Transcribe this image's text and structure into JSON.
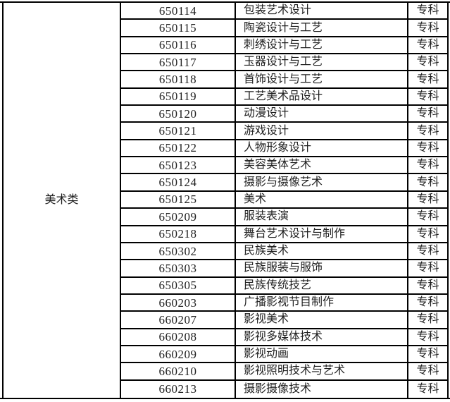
{
  "table": {
    "category": "美术类",
    "rows": [
      {
        "code": "650114",
        "major": "包装艺术设计",
        "level": "专科"
      },
      {
        "code": "650115",
        "major": "陶瓷设计与工艺",
        "level": "专科"
      },
      {
        "code": "650116",
        "major": "刺绣设计与工艺",
        "level": "专科"
      },
      {
        "code": "650117",
        "major": "玉器设计与工艺",
        "level": "专科"
      },
      {
        "code": "650118",
        "major": "首饰设计与工艺",
        "level": "专科"
      },
      {
        "code": "650119",
        "major": "工艺美术品设计",
        "level": "专科"
      },
      {
        "code": "650120",
        "major": "动漫设计",
        "level": "专科"
      },
      {
        "code": "650121",
        "major": "游戏设计",
        "level": "专科"
      },
      {
        "code": "650122",
        "major": "人物形象设计",
        "level": "专科"
      },
      {
        "code": "650123",
        "major": "美容美体艺术",
        "level": "专科"
      },
      {
        "code": "650124",
        "major": "摄影与摄像艺术",
        "level": "专科"
      },
      {
        "code": "650125",
        "major": "美术",
        "level": "专科"
      },
      {
        "code": "650209",
        "major": "服装表演",
        "level": "专科"
      },
      {
        "code": "650218",
        "major": "舞台艺术设计与制作",
        "level": "专科"
      },
      {
        "code": "650302",
        "major": "民族美术",
        "level": "专科"
      },
      {
        "code": "650303",
        "major": "民族服装与服饰",
        "level": "专科"
      },
      {
        "code": "650305",
        "major": "民族传统技艺",
        "level": "专科"
      },
      {
        "code": "660203",
        "major": "广播影视节目制作",
        "level": "专科"
      },
      {
        "code": "660207",
        "major": "影视美术",
        "level": "专科"
      },
      {
        "code": "660208",
        "major": "影视多媒体技术",
        "level": "专科"
      },
      {
        "code": "660209",
        "major": "影视动画",
        "level": "专科"
      },
      {
        "code": "660210",
        "major": "影视照明技术与艺术",
        "level": "专科"
      },
      {
        "code": "660213",
        "major": "摄影摄像技术",
        "level": "专科"
      }
    ]
  },
  "colors": {
    "border": "#000000",
    "text": "#1f1f1f",
    "background": "#ffffff"
  }
}
